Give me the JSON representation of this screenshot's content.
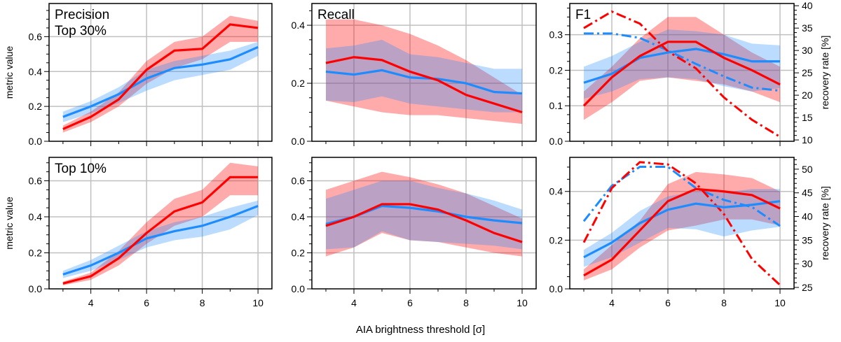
{
  "chart_data": {
    "type": "line",
    "xlabel": "AIA brightness threshold [σ]",
    "x": [
      3,
      4,
      5,
      6,
      7,
      8,
      9,
      10
    ],
    "xlim": [
      2.5,
      10.5
    ],
    "xticks": [
      4,
      6,
      8,
      10
    ],
    "colors": {
      "red": "#ff0000",
      "blue": "#1e8cff"
    },
    "panels": [
      {
        "id": "precision-top30",
        "title": "Precision\nTop 30%",
        "ylabel": "metric value",
        "ylim": [
          0,
          0.79
        ],
        "yticks": [
          0.0,
          0.2,
          0.4,
          0.6
        ],
        "ytick_labels": [
          "0.0",
          "0.2",
          "0.4",
          "0.6"
        ],
        "series": [
          {
            "name": "red",
            "values": [
              0.07,
              0.14,
              0.24,
              0.41,
              0.52,
              0.53,
              0.67,
              0.65
            ],
            "lo": [
              0.05,
              0.11,
              0.2,
              0.33,
              0.42,
              0.47,
              0.57,
              0.57
            ],
            "hi": [
              0.09,
              0.17,
              0.28,
              0.46,
              0.57,
              0.6,
              0.72,
              0.69
            ]
          },
          {
            "name": "blue",
            "values": [
              0.14,
              0.2,
              0.27,
              0.36,
              0.42,
              0.44,
              0.47,
              0.54
            ],
            "lo": [
              0.11,
              0.16,
              0.22,
              0.29,
              0.35,
              0.38,
              0.41,
              0.49
            ],
            "hi": [
              0.17,
              0.23,
              0.31,
              0.41,
              0.46,
              0.49,
              0.52,
              0.57
            ]
          }
        ]
      },
      {
        "id": "recall-top30",
        "title": "Recall",
        "ylabel": "",
        "ylim": [
          0,
          0.475
        ],
        "yticks": [
          0.0,
          0.2,
          0.4
        ],
        "ytick_labels": [
          "0.0",
          "0.2",
          "0.4"
        ],
        "series": [
          {
            "name": "red",
            "values": [
              0.27,
              0.29,
              0.28,
              0.24,
              0.21,
              0.16,
              0.13,
              0.1
            ],
            "lo": [
              0.14,
              0.12,
              0.1,
              0.09,
              0.09,
              0.08,
              0.07,
              0.06
            ],
            "hi": [
              0.42,
              0.42,
              0.4,
              0.37,
              0.33,
              0.28,
              0.22,
              0.16
            ]
          },
          {
            "name": "blue",
            "values": [
              0.24,
              0.23,
              0.245,
              0.22,
              0.215,
              0.2,
              0.17,
              0.165
            ],
            "lo": [
              0.14,
              0.135,
              0.155,
              0.13,
              0.12,
              0.11,
              0.1,
              0.1
            ],
            "hi": [
              0.32,
              0.33,
              0.35,
              0.3,
              0.29,
              0.27,
              0.25,
              0.25
            ]
          }
        ]
      },
      {
        "id": "f1-top30",
        "title": "F1",
        "ylabel": "",
        "ylim": [
          0,
          0.388
        ],
        "yticks": [
          0.0,
          0.1,
          0.2,
          0.3
        ],
        "ytick_labels": [
          "0.0",
          "0.1",
          "0.2",
          "0.3"
        ],
        "y2label": "recovery rate [%]",
        "y2lim": [
          9.7,
          40.5
        ],
        "y2ticks": [
          10,
          15,
          20,
          25,
          30,
          35,
          40
        ],
        "y2tick_labels": [
          "10",
          "15",
          "20",
          "25",
          "30",
          "35",
          "40"
        ],
        "series": [
          {
            "name": "red",
            "values": [
              0.1,
              0.18,
              0.24,
              0.28,
              0.28,
              0.235,
              0.2,
              0.16
            ],
            "lo": [
              0.06,
              0.11,
              0.17,
              0.18,
              0.17,
              0.16,
              0.14,
              0.11
            ],
            "hi": [
              0.14,
              0.21,
              0.29,
              0.35,
              0.35,
              0.3,
              0.25,
              0.21
            ]
          },
          {
            "name": "blue",
            "values": [
              0.165,
              0.19,
              0.235,
              0.25,
              0.26,
              0.245,
              0.225,
              0.225
            ],
            "lo": [
              0.12,
              0.14,
              0.175,
              0.18,
              0.175,
              0.155,
              0.14,
              0.15
            ],
            "hi": [
              0.21,
              0.24,
              0.28,
              0.315,
              0.31,
              0.3,
              0.275,
              0.27
            ]
          }
        ],
        "recovery": [
          {
            "name": "red",
            "values": [
              35,
              38.7,
              36,
              29.8,
              26,
              19.5,
              14.5,
              10.7
            ]
          },
          {
            "name": "blue",
            "values": [
              33.8,
              33.8,
              32.8,
              30,
              27,
              24.2,
              21.7,
              21
            ]
          }
        ]
      },
      {
        "id": "precision-top10",
        "title": "Top 10%",
        "ylabel": "metric value",
        "ylim": [
          0,
          0.73
        ],
        "yticks": [
          0.0,
          0.2,
          0.4,
          0.6
        ],
        "ytick_labels": [
          "0.0",
          "0.2",
          "0.4",
          "0.6"
        ],
        "series": [
          {
            "name": "red",
            "values": [
              0.03,
              0.07,
              0.17,
              0.31,
              0.43,
              0.48,
              0.62,
              0.62
            ],
            "lo": [
              0.02,
              0.05,
              0.13,
              0.25,
              0.35,
              0.4,
              0.52,
              0.52
            ],
            "hi": [
              0.04,
              0.09,
              0.21,
              0.37,
              0.5,
              0.55,
              0.7,
              0.68
            ]
          },
          {
            "name": "blue",
            "values": [
              0.08,
              0.13,
              0.2,
              0.28,
              0.32,
              0.35,
              0.4,
              0.46
            ],
            "lo": [
              0.06,
              0.1,
              0.16,
              0.23,
              0.27,
              0.29,
              0.33,
              0.41
            ],
            "hi": [
              0.1,
              0.16,
              0.24,
              0.32,
              0.37,
              0.4,
              0.45,
              0.49
            ]
          }
        ]
      },
      {
        "id": "recall-top10",
        "title": "",
        "ylabel": "",
        "ylim": [
          0,
          0.73
        ],
        "yticks": [
          0.0,
          0.2,
          0.4,
          0.6
        ],
        "ytick_labels": [
          "0.0",
          "0.2",
          "0.4",
          "0.6"
        ],
        "series": [
          {
            "name": "red",
            "values": [
              0.35,
              0.4,
              0.47,
              0.47,
              0.44,
              0.38,
              0.31,
              0.26
            ],
            "lo": [
              0.18,
              0.23,
              0.31,
              0.27,
              0.26,
              0.23,
              0.2,
              0.18
            ],
            "hi": [
              0.55,
              0.6,
              0.65,
              0.62,
              0.58,
              0.53,
              0.46,
              0.39
            ]
          },
          {
            "name": "blue",
            "values": [
              0.36,
              0.4,
              0.46,
              0.45,
              0.43,
              0.4,
              0.38,
              0.365
            ],
            "lo": [
              0.22,
              0.23,
              0.32,
              0.27,
              0.26,
              0.25,
              0.24,
              0.22
            ],
            "hi": [
              0.5,
              0.55,
              0.6,
              0.6,
              0.56,
              0.53,
              0.49,
              0.44
            ]
          }
        ]
      },
      {
        "id": "f1-top10",
        "title": "",
        "ylabel": "",
        "ylim": [
          0,
          0.54
        ],
        "yticks": [
          0.0,
          0.2,
          0.4
        ],
        "ytick_labels": [
          "0.0",
          "0.2",
          "0.4"
        ],
        "y2label": "recovery rate [%]",
        "y2lim": [
          24.7,
          52.5
        ],
        "y2ticks": [
          25,
          30,
          35,
          40,
          45,
          50
        ],
        "y2tick_labels": [
          "25",
          "30",
          "35",
          "40",
          "45",
          "50"
        ],
        "series": [
          {
            "name": "red",
            "values": [
              0.055,
              0.12,
              0.24,
              0.36,
              0.41,
              0.4,
              0.385,
              0.33
            ],
            "lo": [
              0.035,
              0.08,
              0.17,
              0.24,
              0.26,
              0.285,
              0.285,
              0.26
            ],
            "hi": [
              0.08,
              0.18,
              0.28,
              0.43,
              0.48,
              0.47,
              0.455,
              0.4
            ]
          },
          {
            "name": "blue",
            "values": [
              0.13,
              0.19,
              0.27,
              0.325,
              0.35,
              0.335,
              0.345,
              0.36
            ],
            "lo": [
              0.09,
              0.13,
              0.19,
              0.25,
              0.245,
              0.215,
              0.24,
              0.255
            ],
            "hi": [
              0.16,
              0.23,
              0.32,
              0.38,
              0.4,
              0.395,
              0.41,
              0.41
            ]
          }
        ],
        "recovery": [
          {
            "name": "red",
            "values": [
              34.5,
              46,
              51.5,
              51,
              47,
              40.5,
              31,
              25.5
            ]
          },
          {
            "name": "blue",
            "values": [
              39,
              46.5,
              50.5,
              50.5,
              46,
              43.5,
              42,
              38
            ]
          }
        ]
      }
    ]
  }
}
